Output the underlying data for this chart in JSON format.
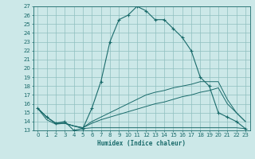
{
  "xlabel": "Humidex (Indice chaleur)",
  "bg_color": "#cce8e8",
  "grid_color": "#8fbfbf",
  "line_color": "#1a6b6b",
  "x_values": [
    0,
    1,
    2,
    3,
    4,
    5,
    6,
    7,
    8,
    9,
    10,
    11,
    12,
    13,
    14,
    15,
    16,
    17,
    18,
    19,
    20,
    21,
    22,
    23
  ],
  "main_curve": [
    15.5,
    14.5,
    13.8,
    14.0,
    13.0,
    13.2,
    15.5,
    18.5,
    23.0,
    25.5,
    26.0,
    27.0,
    26.5,
    25.5,
    25.5,
    24.5,
    23.5,
    22.0,
    19.0,
    18.0,
    15.0,
    14.5,
    14.0,
    13.2
  ],
  "line2": [
    15.5,
    14.2,
    13.7,
    13.8,
    13.5,
    13.2,
    13.3,
    13.3,
    13.3,
    13.3,
    13.3,
    13.3,
    13.3,
    13.3,
    13.3,
    13.3,
    13.3,
    13.3,
    13.3,
    13.3,
    13.3,
    13.3,
    13.3,
    13.2
  ],
  "line3": [
    15.5,
    14.5,
    13.8,
    13.8,
    13.5,
    13.3,
    13.8,
    14.2,
    14.5,
    14.8,
    15.1,
    15.4,
    15.7,
    16.0,
    16.2,
    16.5,
    16.8,
    17.0,
    17.3,
    17.5,
    17.8,
    16.0,
    15.0,
    14.0
  ],
  "line4": [
    15.5,
    14.5,
    13.8,
    13.8,
    13.5,
    13.3,
    14.0,
    14.5,
    15.0,
    15.5,
    16.0,
    16.5,
    17.0,
    17.3,
    17.5,
    17.8,
    18.0,
    18.2,
    18.5,
    18.5,
    18.5,
    16.5,
    15.0,
    14.0
  ],
  "ylim": [
    13,
    27
  ],
  "xlim": [
    -0.5,
    23.5
  ],
  "yticks": [
    13,
    14,
    15,
    16,
    17,
    18,
    19,
    20,
    21,
    22,
    23,
    24,
    25,
    26,
    27
  ],
  "xticks": [
    0,
    1,
    2,
    3,
    4,
    5,
    6,
    7,
    8,
    9,
    10,
    11,
    12,
    13,
    14,
    15,
    16,
    17,
    18,
    19,
    20,
    21,
    22,
    23
  ]
}
